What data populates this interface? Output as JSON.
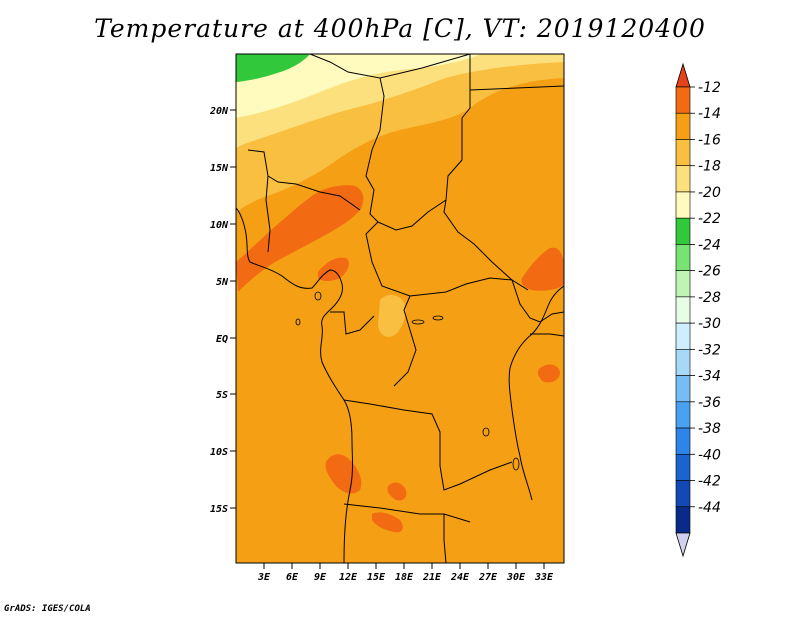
{
  "title": "Temperature at 400hPa [C], VT: 2019120400",
  "credit": "GrADS: IGES/COLA",
  "map": {
    "type": "filled-contour-map",
    "variable": "Temperature at 400hPa",
    "units": "C",
    "valid_time": "2019120400",
    "lat_range": [
      -19,
      25
    ],
    "lon_range": [
      0,
      35
    ],
    "lat_ticks": [
      "20N",
      "15N",
      "10N",
      "5N",
      "EQ",
      "5S",
      "10S",
      "15S"
    ],
    "lon_ticks": [
      "3E",
      "6E",
      "9E",
      "12E",
      "15E",
      "18E",
      "21E",
      "24E",
      "27E",
      "30E",
      "33E"
    ],
    "dominant_range": "-16 to -14",
    "features": [
      "-22 to -24 (green) in far northwest corner",
      "-20 to -22 band across the north (about 19N-25N)",
      "-18 to -20 band near 14N-20N",
      "-14 to -12 patches over Nigeria, Cameroon coast, South Sudan/Uganda, Angola"
    ]
  },
  "colorbar": {
    "labels": [
      "-12",
      "-14",
      "-16",
      "-18",
      "-20",
      "-22",
      "-24",
      "-26",
      "-28",
      "-30",
      "-32",
      "-34",
      "-36",
      "-38",
      "-40",
      "-42",
      "-44"
    ],
    "colors": [
      "#e5421a",
      "#f26a12",
      "#f5a014",
      "#f9bf40",
      "#fbe07d",
      "#fffabe",
      "#32c83c",
      "#78e272",
      "#bff5b4",
      "#e8fde6",
      "#cdeffd",
      "#a6d9f7",
      "#77bdf5",
      "#4aa0f1",
      "#2e84e8",
      "#1a64d0",
      "#1249b5",
      "#0a2a8a",
      "#d2d2f0"
    ]
  }
}
